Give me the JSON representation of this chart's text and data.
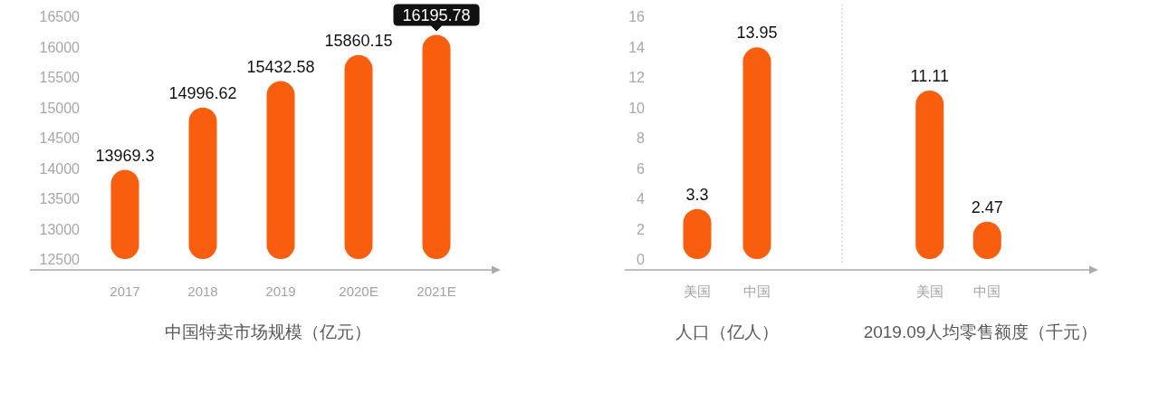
{
  "chart_data": [
    {
      "type": "bar",
      "categories": [
        "2017",
        "2018",
        "2019",
        "2020E",
        "2021E"
      ],
      "values": [
        13969.3,
        14996.62,
        15432.58,
        15860.15,
        16195.78
      ],
      "color": "#f95e0f",
      "xlabel": "中国特卖市场规模（亿元）",
      "ylim": [
        12500,
        16500
      ],
      "yticks": [
        12500,
        13000,
        13500,
        14000,
        14500,
        15000,
        15500,
        16000,
        16500
      ],
      "value_labels": [
        "13969.3",
        "14996.62",
        "15432.58",
        "15860.15",
        null
      ],
      "annotations": [
        {
          "text": "16195.78",
          "x": "2021E",
          "y": 16195.78
        }
      ]
    },
    {
      "type": "bar",
      "categories": [
        "美国",
        "中国"
      ],
      "values": [
        3.3,
        13.95
      ],
      "color": "#f95e0f",
      "xlabel": "人口（亿人）",
      "ylim": [
        0,
        16
      ],
      "yticks": [
        0,
        2,
        4,
        6,
        8,
        10,
        12,
        14,
        16
      ],
      "data_labels": true
    },
    {
      "type": "bar",
      "categories": [
        "美国",
        "中国"
      ],
      "values": [
        11.11,
        2.47
      ],
      "color": "#f95e0f",
      "xlabel": "2019.09人均零售额度（千元）",
      "ylim": [
        0,
        16
      ],
      "tick_labels": "x",
      "data_labels": true
    }
  ]
}
